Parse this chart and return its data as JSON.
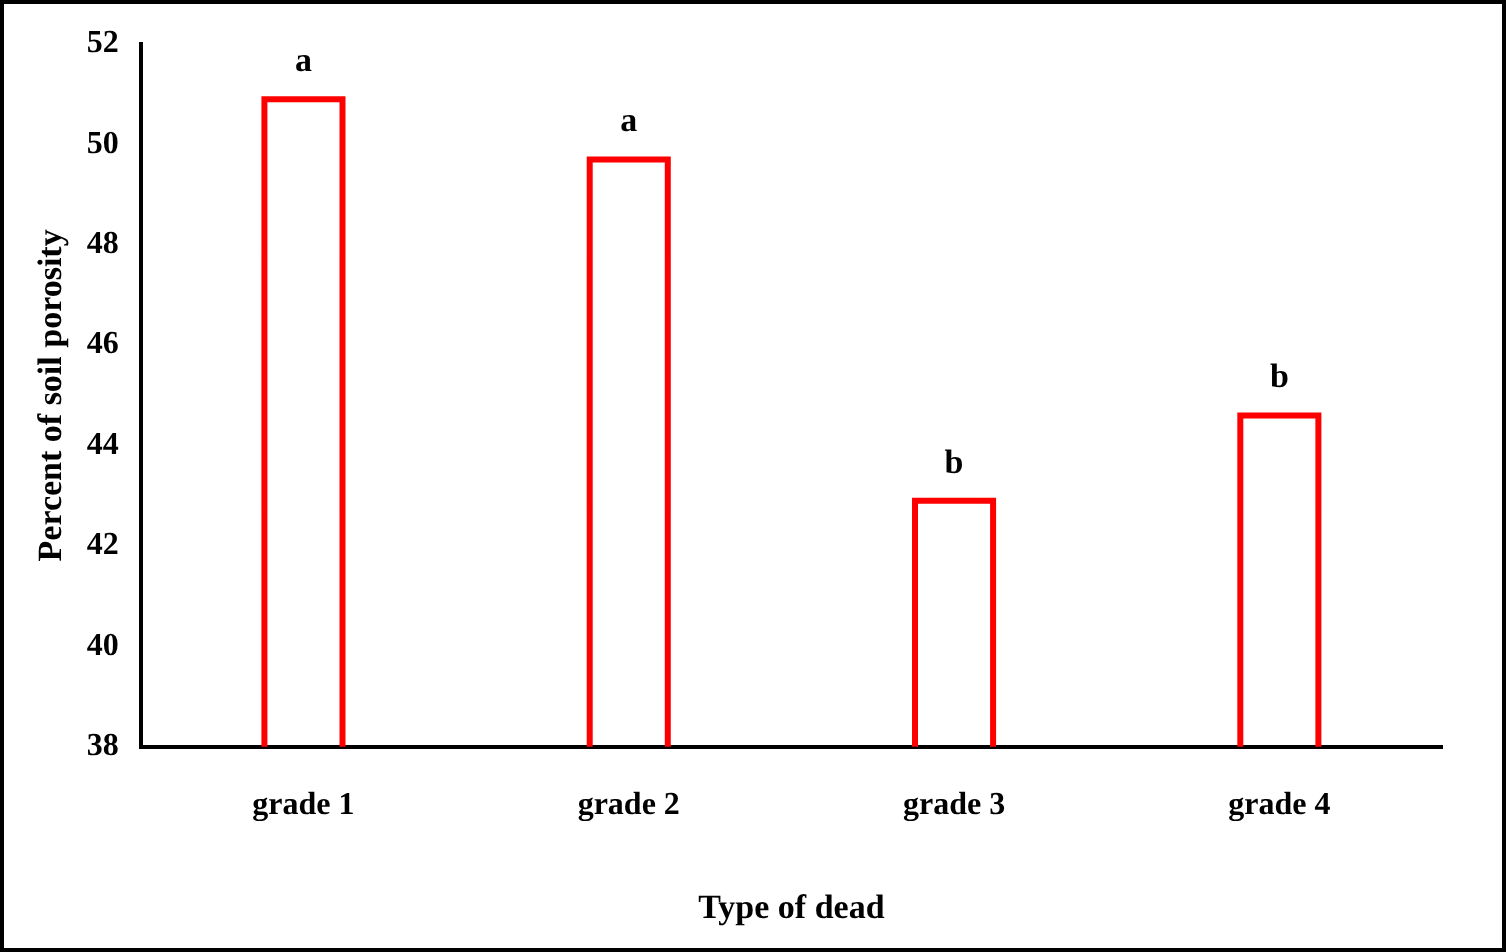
{
  "chart_data": {
    "type": "bar",
    "xlabel": "Type of dead",
    "ylabel": "Percent of soil porosity",
    "categories": [
      "grade 1",
      "grade 2",
      "grade 3",
      "grade 4"
    ],
    "series": [
      {
        "color": "#ff0000",
        "values": [
          50.9,
          49.7,
          42.9,
          44.6
        ]
      }
    ],
    "ylim": [
      38,
      52
    ],
    "yticks": [
      38,
      40,
      42,
      44,
      46,
      48,
      50,
      52
    ],
    "grid": false,
    "legend": false,
    "annotations": [
      {
        "text": "a",
        "x": "grade 1",
        "y": 50.9
      },
      {
        "text": "a",
        "x": "grade 2",
        "y": 49.7
      },
      {
        "text": "b",
        "x": "grade 3",
        "y": 42.9
      },
      {
        "text": "b",
        "x": "grade 4",
        "y": 44.6
      }
    ]
  }
}
